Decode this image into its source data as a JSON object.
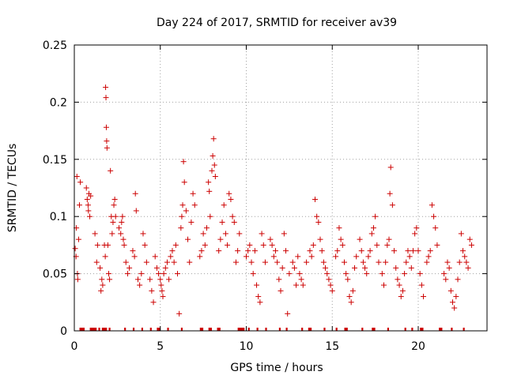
{
  "chart_data": {
    "type": "scatter",
    "title": "Day 224 of 2017, SRMTID for receiver av39",
    "xlabel": "GPS time / hours",
    "ylabel": "SRMTID / TECUs",
    "xlim": [
      0,
      24
    ],
    "ylim": [
      0,
      0.25
    ],
    "x_ticks": [
      0,
      5,
      10,
      15,
      20
    ],
    "x_tick_labels": [
      "0",
      "5",
      "10",
      "15",
      "20"
    ],
    "y_ticks": [
      0,
      0.05,
      0.1,
      0.15,
      0.2,
      0.25
    ],
    "y_tick_labels": [
      "0",
      "0.05",
      "0.1",
      "0.15",
      "0.2",
      "0.25"
    ],
    "grid": true,
    "marker": "+",
    "color": "#cc0000",
    "series": [
      {
        "name": "SRMTID",
        "points": [
          [
            0.05,
            0.072
          ],
          [
            0.1,
            0.065
          ],
          [
            0.12,
            0.09
          ],
          [
            0.15,
            0.135
          ],
          [
            0.18,
            0.05
          ],
          [
            0.2,
            0.045
          ],
          [
            0.25,
            0.08
          ],
          [
            0.3,
            0.11
          ],
          [
            0.35,
            0.13
          ],
          [
            0.7,
            0.125
          ],
          [
            0.75,
            0.115
          ],
          [
            0.8,
            0.11
          ],
          [
            0.82,
            0.105
          ],
          [
            0.85,
            0.12
          ],
          [
            0.9,
            0.1
          ],
          [
            0.95,
            0.118
          ],
          [
            1.2,
            0.085
          ],
          [
            1.3,
            0.06
          ],
          [
            1.35,
            0.075
          ],
          [
            1.5,
            0.055
          ],
          [
            1.55,
            0.035
          ],
          [
            1.6,
            0.045
          ],
          [
            1.65,
            0.04
          ],
          [
            1.75,
            0.075
          ],
          [
            1.8,
            0.065
          ],
          [
            1.82,
            0.213
          ],
          [
            1.84,
            0.204
          ],
          [
            1.86,
            0.178
          ],
          [
            1.88,
            0.166
          ],
          [
            1.9,
            0.16
          ],
          [
            1.95,
            0.075
          ],
          [
            2.0,
            0.05
          ],
          [
            2.05,
            0.045
          ],
          [
            2.1,
            0.14
          ],
          [
            2.15,
            0.1
          ],
          [
            2.2,
            0.085
          ],
          [
            2.25,
            0.095
          ],
          [
            2.3,
            0.11
          ],
          [
            2.35,
            0.115
          ],
          [
            2.4,
            0.1
          ],
          [
            2.6,
            0.09
          ],
          [
            2.7,
            0.085
          ],
          [
            2.75,
            0.095
          ],
          [
            2.8,
            0.1
          ],
          [
            2.85,
            0.08
          ],
          [
            2.9,
            0.075
          ],
          [
            3.0,
            0.06
          ],
          [
            3.1,
            0.05
          ],
          [
            3.2,
            0.055
          ],
          [
            3.4,
            0.07
          ],
          [
            3.5,
            0.065
          ],
          [
            3.55,
            0.12
          ],
          [
            3.6,
            0.105
          ],
          [
            3.7,
            0.045
          ],
          [
            3.8,
            0.04
          ],
          [
            3.9,
            0.05
          ],
          [
            4.0,
            0.085
          ],
          [
            4.1,
            0.075
          ],
          [
            4.2,
            0.06
          ],
          [
            4.4,
            0.045
          ],
          [
            4.5,
            0.035
          ],
          [
            4.6,
            0.025
          ],
          [
            4.7,
            0.065
          ],
          [
            4.8,
            0.055
          ],
          [
            4.9,
            0.05
          ],
          [
            5.0,
            0.045
          ],
          [
            5.05,
            0.04
          ],
          [
            5.1,
            0.035
          ],
          [
            5.15,
            0.03
          ],
          [
            5.2,
            0.05
          ],
          [
            5.3,
            0.055
          ],
          [
            5.4,
            0.06
          ],
          [
            5.5,
            0.045
          ],
          [
            5.6,
            0.065
          ],
          [
            5.7,
            0.07
          ],
          [
            5.8,
            0.06
          ],
          [
            5.9,
            0.075
          ],
          [
            6.0,
            0.05
          ],
          [
            6.1,
            0.015
          ],
          [
            6.2,
            0.09
          ],
          [
            6.25,
            0.1
          ],
          [
            6.3,
            0.11
          ],
          [
            6.35,
            0.148
          ],
          [
            6.4,
            0.13
          ],
          [
            6.5,
            0.105
          ],
          [
            6.6,
            0.08
          ],
          [
            6.7,
            0.06
          ],
          [
            6.8,
            0.095
          ],
          [
            6.9,
            0.12
          ],
          [
            7.0,
            0.11
          ],
          [
            7.3,
            0.065
          ],
          [
            7.4,
            0.07
          ],
          [
            7.5,
            0.085
          ],
          [
            7.6,
            0.075
          ],
          [
            7.7,
            0.09
          ],
          [
            7.8,
            0.13
          ],
          [
            7.85,
            0.122
          ],
          [
            7.9,
            0.1
          ],
          [
            8.0,
            0.14
          ],
          [
            8.05,
            0.153
          ],
          [
            8.1,
            0.168
          ],
          [
            8.15,
            0.145
          ],
          [
            8.2,
            0.135
          ],
          [
            8.4,
            0.07
          ],
          [
            8.5,
            0.08
          ],
          [
            8.6,
            0.095
          ],
          [
            8.7,
            0.11
          ],
          [
            8.8,
            0.085
          ],
          [
            8.9,
            0.075
          ],
          [
            9.0,
            0.12
          ],
          [
            9.1,
            0.115
          ],
          [
            9.2,
            0.1
          ],
          [
            9.3,
            0.095
          ],
          [
            9.4,
            0.06
          ],
          [
            9.5,
            0.07
          ],
          [
            9.6,
            0.085
          ],
          [
            10.0,
            0.065
          ],
          [
            10.1,
            0.07
          ],
          [
            10.2,
            0.075
          ],
          [
            10.3,
            0.06
          ],
          [
            10.4,
            0.05
          ],
          [
            10.5,
            0.07
          ],
          [
            10.6,
            0.04
          ],
          [
            10.7,
            0.03
          ],
          [
            10.8,
            0.025
          ],
          [
            10.9,
            0.085
          ],
          [
            11.0,
            0.075
          ],
          [
            11.1,
            0.06
          ],
          [
            11.4,
            0.08
          ],
          [
            11.5,
            0.075
          ],
          [
            11.6,
            0.065
          ],
          [
            11.7,
            0.07
          ],
          [
            11.8,
            0.06
          ],
          [
            11.9,
            0.045
          ],
          [
            12.0,
            0.035
          ],
          [
            12.1,
            0.055
          ],
          [
            12.2,
            0.085
          ],
          [
            12.3,
            0.07
          ],
          [
            12.4,
            0.015
          ],
          [
            12.5,
            0.05
          ],
          [
            12.7,
            0.06
          ],
          [
            12.8,
            0.055
          ],
          [
            12.9,
            0.04
          ],
          [
            13.0,
            0.065
          ],
          [
            13.1,
            0.05
          ],
          [
            13.2,
            0.045
          ],
          [
            13.3,
            0.04
          ],
          [
            13.5,
            0.06
          ],
          [
            13.7,
            0.07
          ],
          [
            13.8,
            0.065
          ],
          [
            13.9,
            0.075
          ],
          [
            14.0,
            0.115
          ],
          [
            14.1,
            0.1
          ],
          [
            14.2,
            0.095
          ],
          [
            14.3,
            0.08
          ],
          [
            14.4,
            0.07
          ],
          [
            14.5,
            0.06
          ],
          [
            14.6,
            0.055
          ],
          [
            14.7,
            0.05
          ],
          [
            14.8,
            0.045
          ],
          [
            14.9,
            0.04
          ],
          [
            15.0,
            0.035
          ],
          [
            15.2,
            0.065
          ],
          [
            15.3,
            0.07
          ],
          [
            15.4,
            0.09
          ],
          [
            15.5,
            0.08
          ],
          [
            15.6,
            0.075
          ],
          [
            15.7,
            0.06
          ],
          [
            15.8,
            0.05
          ],
          [
            15.9,
            0.045
          ],
          [
            16.0,
            0.03
          ],
          [
            16.1,
            0.025
          ],
          [
            16.2,
            0.035
          ],
          [
            16.3,
            0.055
          ],
          [
            16.4,
            0.065
          ],
          [
            16.6,
            0.08
          ],
          [
            16.7,
            0.07
          ],
          [
            16.8,
            0.06
          ],
          [
            16.9,
            0.055
          ],
          [
            17.0,
            0.05
          ],
          [
            17.1,
            0.065
          ],
          [
            17.2,
            0.07
          ],
          [
            17.3,
            0.085
          ],
          [
            17.4,
            0.09
          ],
          [
            17.5,
            0.1
          ],
          [
            17.6,
            0.075
          ],
          [
            17.7,
            0.06
          ],
          [
            17.9,
            0.05
          ],
          [
            18.0,
            0.04
          ],
          [
            18.1,
            0.06
          ],
          [
            18.2,
            0.075
          ],
          [
            18.3,
            0.08
          ],
          [
            18.35,
            0.12
          ],
          [
            18.4,
            0.143
          ],
          [
            18.5,
            0.11
          ],
          [
            18.6,
            0.07
          ],
          [
            18.7,
            0.055
          ],
          [
            18.8,
            0.045
          ],
          [
            18.9,
            0.04
          ],
          [
            19.0,
            0.03
          ],
          [
            19.1,
            0.035
          ],
          [
            19.2,
            0.05
          ],
          [
            19.3,
            0.06
          ],
          [
            19.4,
            0.07
          ],
          [
            19.5,
            0.065
          ],
          [
            19.6,
            0.055
          ],
          [
            19.7,
            0.07
          ],
          [
            19.8,
            0.085
          ],
          [
            19.9,
            0.09
          ],
          [
            20.0,
            0.07
          ],
          [
            20.1,
            0.05
          ],
          [
            20.2,
            0.04
          ],
          [
            20.3,
            0.03
          ],
          [
            20.5,
            0.06
          ],
          [
            20.6,
            0.065
          ],
          [
            20.7,
            0.07
          ],
          [
            20.8,
            0.11
          ],
          [
            20.9,
            0.1
          ],
          [
            21.0,
            0.09
          ],
          [
            21.1,
            0.075
          ],
          [
            21.5,
            0.05
          ],
          [
            21.6,
            0.045
          ],
          [
            21.7,
            0.06
          ],
          [
            21.8,
            0.055
          ],
          [
            21.9,
            0.035
          ],
          [
            22.0,
            0.025
          ],
          [
            22.1,
            0.02
          ],
          [
            22.2,
            0.03
          ],
          [
            22.3,
            0.045
          ],
          [
            22.4,
            0.06
          ],
          [
            22.5,
            0.085
          ],
          [
            22.6,
            0.07
          ],
          [
            22.7,
            0.065
          ],
          [
            22.8,
            0.06
          ],
          [
            22.9,
            0.055
          ],
          [
            23.0,
            0.08
          ],
          [
            23.1,
            0.075
          ]
        ]
      }
    ],
    "gaps": [
      [
        0.3,
        0.6
      ],
      [
        0.9,
        1.3
      ],
      [
        1.4,
        1.5
      ],
      [
        1.6,
        1.9
      ],
      [
        2.0,
        2.1
      ],
      [
        2.9,
        3.0
      ],
      [
        3.4,
        3.5
      ],
      [
        3.9,
        4.0
      ],
      [
        4.4,
        4.5
      ],
      [
        4.8,
        5.0
      ],
      [
        5.4,
        5.5
      ],
      [
        6.2,
        6.3
      ],
      [
        7.3,
        7.5
      ],
      [
        7.8,
        8.0
      ],
      [
        8.3,
        8.5
      ],
      [
        9.5,
        9.9
      ],
      [
        10.1,
        10.2
      ],
      [
        10.6,
        10.7
      ],
      [
        11.1,
        11.2
      ],
      [
        11.9,
        12.0
      ],
      [
        12.3,
        12.4
      ],
      [
        13.2,
        13.3
      ],
      [
        13.6,
        13.8
      ],
      [
        14.5,
        14.6
      ],
      [
        15.2,
        15.3
      ],
      [
        15.7,
        15.9
      ],
      [
        16.7,
        16.8
      ],
      [
        17.3,
        17.5
      ],
      [
        18.2,
        18.3
      ],
      [
        19.2,
        19.3
      ],
      [
        19.6,
        19.7
      ],
      [
        20.1,
        20.3
      ],
      [
        21.2,
        21.4
      ],
      [
        21.9,
        22.0
      ],
      [
        22.6,
        22.7
      ]
    ]
  }
}
